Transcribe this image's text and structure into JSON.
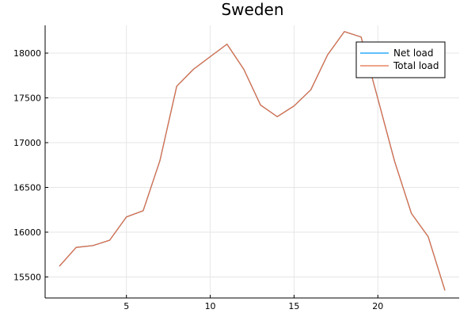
{
  "chart_data": {
    "type": "line",
    "title": "Sweden",
    "xlabel": "",
    "ylabel": "",
    "xlim": [
      0.15,
      24.85
    ],
    "ylim": [
      15265,
      18310
    ],
    "xticks": [
      5,
      10,
      15,
      20
    ],
    "yticks": [
      15500,
      16000,
      16500,
      17000,
      17500,
      18000
    ],
    "grid": true,
    "legend_position": "top-right",
    "x": [
      1,
      2,
      3,
      4,
      5,
      6,
      7,
      8,
      9,
      10,
      11,
      12,
      13,
      14,
      15,
      16,
      17,
      18,
      19,
      20,
      21,
      22,
      23,
      24
    ],
    "series": [
      {
        "name": "Net load",
        "color": "#009AFA",
        "values": [
          15620,
          15830,
          15850,
          15910,
          16170,
          16240,
          16800,
          17630,
          17820,
          17960,
          18100,
          17820,
          17420,
          17290,
          17410,
          17590,
          17980,
          18240,
          18180,
          17490,
          16790,
          16210,
          15950,
          15350
        ]
      },
      {
        "name": "Total load",
        "color": "#E26F46",
        "values": [
          15620,
          15830,
          15850,
          15910,
          16170,
          16240,
          16800,
          17630,
          17820,
          17960,
          18100,
          17820,
          17420,
          17290,
          17410,
          17590,
          17980,
          18240,
          18180,
          17490,
          16790,
          16210,
          15950,
          15350
        ]
      }
    ]
  }
}
